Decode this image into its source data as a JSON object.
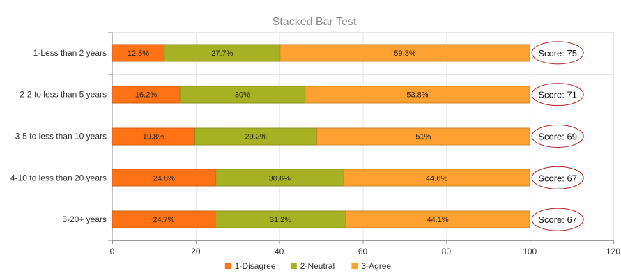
{
  "chart_data": {
    "type": "bar",
    "orientation": "horizontal",
    "stacked": true,
    "title": "Stacked Bar Test",
    "categories": [
      "1-Less than 2 years",
      "2-2 to less than 5 years",
      "3-5 to less than 10 years",
      "4-10 to less than 20 years",
      "5-20+ years"
    ],
    "series": [
      {
        "name": "1-Disagree",
        "color": "#ff7216",
        "values": [
          12.5,
          16.2,
          19.8,
          24.8,
          24.7
        ],
        "labels": [
          "12.5%",
          "16.2%",
          "19.8%",
          "24.8%",
          "24.7%"
        ]
      },
      {
        "name": "2-Neutral",
        "color": "#a6b223",
        "values": [
          27.7,
          30,
          29.2,
          30.6,
          31.2
        ],
        "labels": [
          "27.7%",
          "30%",
          "29.2%",
          "30.6%",
          "31.2%"
        ]
      },
      {
        "name": "3-Agree",
        "color": "#ffa032",
        "values": [
          59.8,
          53.8,
          51,
          44.6,
          44.1
        ],
        "labels": [
          "59.8%",
          "53.8%",
          "51%",
          "44.6%",
          "44.1%"
        ]
      }
    ],
    "annotations": [
      "Score: 75",
      "Score: 71",
      "Score: 69",
      "Score: 67",
      "Score: 67"
    ],
    "annotation_style": {
      "outline_color": "#b22222"
    },
    "xlim": [
      0,
      120
    ],
    "xticks": [
      0,
      20,
      40,
      60,
      80,
      100,
      120
    ],
    "xtick_labels": [
      "0",
      "20",
      "40",
      "60",
      "80",
      "100",
      "120"
    ],
    "grid": true,
    "legend_position": "bottom",
    "xlabel": "",
    "ylabel": ""
  }
}
